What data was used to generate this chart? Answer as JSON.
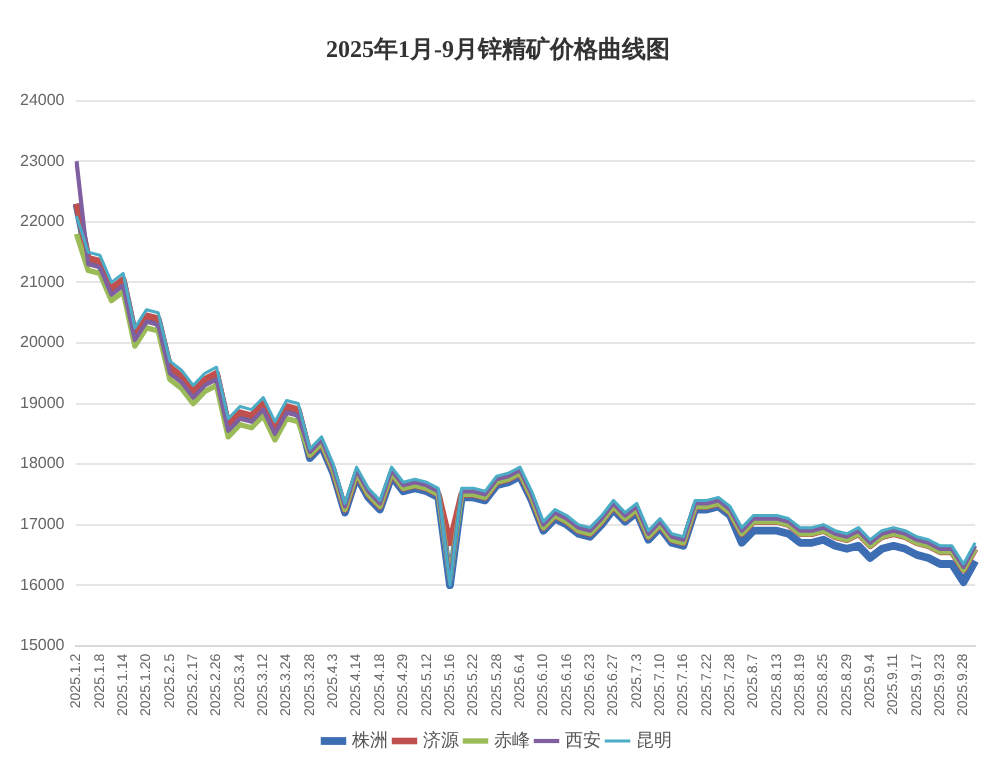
{
  "chart_data": {
    "type": "line",
    "title": "2025年1月-9月锌精矿价格曲线图",
    "categories": [
      "2025.1.2",
      null,
      "2025.1.8",
      null,
      "2025.1.14",
      null,
      "2025.1.20",
      null,
      "2025.2.5",
      null,
      "2025.2.17",
      null,
      "2025.2.26",
      null,
      "2025.3.4",
      null,
      "2025.3.12",
      null,
      "2025.3.24",
      null,
      "2025.3.28",
      null,
      "2025.4.3",
      null,
      "2025.4.14",
      null,
      "2025.4.18",
      null,
      "2025.4.29",
      null,
      "2025.5.12",
      null,
      "2025.5.16",
      null,
      "2025.5.22",
      null,
      "2025.5.28",
      null,
      "2025.6.4",
      null,
      "2025.6.10",
      null,
      "2025.6.16",
      null,
      "2025.6.23",
      null,
      "2025.6.27",
      null,
      "2025.7.3",
      null,
      "2025.7.10",
      null,
      "2025.7.16",
      null,
      "2025.7.22",
      null,
      "2025.7.28",
      null,
      "2025.8.7",
      null,
      "2025.8.13",
      null,
      "2025.8.19",
      null,
      "2025.8.25",
      null,
      "2025.8.29",
      null,
      "2025.9.4",
      null,
      "2025.9.11",
      null,
      "2025.9.17",
      null,
      "2025.9.23",
      null,
      "2025.9.28",
      null
    ],
    "series": [
      {
        "name": "株洲",
        "color": "#3d6eb4",
        "values": [
          22300,
          21350,
          21300,
          20850,
          21000,
          20100,
          20400,
          20350,
          19550,
          19400,
          19150,
          19350,
          19450,
          18600,
          18800,
          18750,
          18950,
          18550,
          18900,
          18850,
          18100,
          18300,
          17850,
          17200,
          17800,
          17450,
          17250,
          17800,
          17550,
          17600,
          17550,
          17450,
          16000,
          17450,
          17450,
          17400,
          17650,
          17700,
          17800,
          17400,
          16900,
          17100,
          17000,
          16850,
          16800,
          17000,
          17250,
          17050,
          17200,
          16750,
          16950,
          16700,
          16650,
          17250,
          17250,
          17300,
          17150,
          16700,
          16900,
          16900,
          16900,
          16850,
          16700,
          16700,
          16750,
          16650,
          16600,
          16650,
          16450,
          16600,
          16650,
          16600,
          16500,
          16450,
          16350,
          16350,
          16050,
          16400
        ]
      },
      {
        "name": "济源",
        "color": "#c0504d",
        "values": [
          22300,
          21400,
          21350,
          20900,
          21050,
          20150,
          20450,
          20400,
          19600,
          19450,
          19200,
          19400,
          19500,
          18650,
          18850,
          18800,
          19000,
          18600,
          18950,
          18900,
          18150,
          18350,
          17900,
          17250,
          17850,
          17500,
          17300,
          17850,
          17600,
          17650,
          17600,
          17500,
          16700,
          17500,
          17500,
          17450,
          17700,
          17750,
          17850,
          17450,
          16950,
          17150,
          17050,
          16900,
          16850,
          17050,
          17300,
          17100,
          17250,
          16800,
          17000,
          16750,
          16700,
          17300,
          17300,
          17350,
          17200,
          16850,
          17050,
          17050,
          17050,
          17000,
          16850,
          16850,
          16900,
          16800,
          16750,
          16850,
          16650,
          16800,
          16850,
          16800,
          16700,
          16650,
          16550,
          16550,
          16250,
          16600
        ]
      },
      {
        "name": "赤峰",
        "color": "#9bbb59",
        "values": [
          21800,
          21200,
          21150,
          20700,
          20850,
          19950,
          20250,
          20200,
          19400,
          19250,
          19000,
          19200,
          19300,
          18450,
          18650,
          18600,
          18800,
          18400,
          18750,
          18700,
          18150,
          18350,
          17900,
          17250,
          17850,
          17500,
          17300,
          17850,
          17600,
          17650,
          17600,
          17500,
          16100,
          17500,
          17500,
          17450,
          17700,
          17750,
          17850,
          17450,
          16950,
          17150,
          17050,
          16900,
          16850,
          17050,
          17300,
          17100,
          17250,
          16800,
          17000,
          16750,
          16700,
          17300,
          17300,
          17350,
          17200,
          16850,
          17050,
          17050,
          17050,
          17000,
          16850,
          16850,
          16900,
          16800,
          16750,
          16850,
          16650,
          16800,
          16850,
          16800,
          16700,
          16650,
          16550,
          16550,
          16250,
          16600
        ]
      },
      {
        "name": "西安",
        "color": "#7f5fa0",
        "values": [
          23000,
          21300,
          21250,
          20800,
          20950,
          20050,
          20350,
          20300,
          19500,
          19350,
          19100,
          19300,
          19400,
          18550,
          18750,
          18700,
          18900,
          18500,
          18850,
          18800,
          18200,
          18400,
          17950,
          17300,
          17900,
          17550,
          17350,
          17900,
          17650,
          17700,
          17650,
          17550,
          16050,
          17550,
          17550,
          17500,
          17750,
          17800,
          17900,
          17500,
          17000,
          17200,
          17100,
          16950,
          16900,
          17100,
          17350,
          17150,
          17300,
          16850,
          17050,
          16800,
          16750,
          17350,
          17350,
          17400,
          17250,
          16900,
          17100,
          17100,
          17100,
          17050,
          16900,
          16900,
          16950,
          16850,
          16800,
          16900,
          16700,
          16850,
          16900,
          16850,
          16750,
          16700,
          16600,
          16600,
          16300,
          16650
        ]
      },
      {
        "name": "昆明",
        "color": "#4bacc6",
        "values": [
          22100,
          21500,
          21450,
          21000,
          21150,
          20250,
          20550,
          20500,
          19700,
          19550,
          19300,
          19500,
          19600,
          18750,
          18950,
          18900,
          19100,
          18700,
          19050,
          19000,
          18250,
          18450,
          18000,
          17350,
          17950,
          17600,
          17400,
          17950,
          17700,
          17750,
          17700,
          17600,
          16000,
          17600,
          17600,
          17550,
          17800,
          17850,
          17950,
          17550,
          17050,
          17250,
          17150,
          17000,
          16950,
          17150,
          17400,
          17200,
          17350,
          16900,
          17100,
          16850,
          16800,
          17400,
          17400,
          17450,
          17300,
          16950,
          17150,
          17150,
          17150,
          17100,
          16950,
          16950,
          17000,
          16900,
          16850,
          16950,
          16750,
          16900,
          16950,
          16900,
          16800,
          16750,
          16650,
          16650,
          16350,
          16700
        ]
      }
    ],
    "ylim": [
      15000,
      24000
    ],
    "yticks": [
      15000,
      16000,
      17000,
      18000,
      19000,
      20000,
      21000,
      22000,
      23000,
      24000
    ],
    "grid": "y",
    "legend": "bottom",
    "marker": "none",
    "line_style": "solid"
  }
}
